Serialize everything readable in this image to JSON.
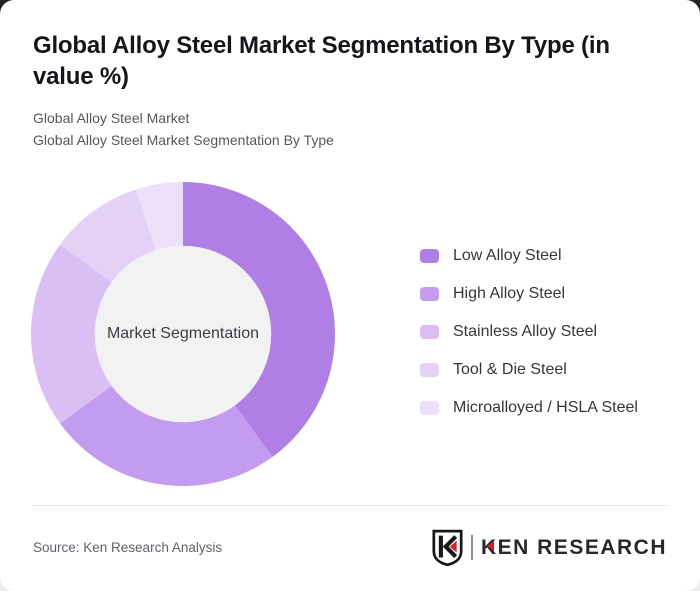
{
  "card": {
    "title": "Global Alloy Steel Market Segmentation By Type (in value %)",
    "subtitle_lines": [
      "Global Alloy Steel Market",
      "Global Alloy Steel Market Segmentation By Type"
    ]
  },
  "chart_data": {
    "type": "pie",
    "variant": "donut",
    "title": "Global Alloy Steel Market Segmentation By Type (in value %)",
    "unit": "value %",
    "center_label": "Market Segmentation",
    "categories": [
      "Low Alloy Steel",
      "High Alloy Steel",
      "Stainless Alloy Steel",
      "Tool & Die Steel",
      "Microalloyed / HSLA Steel"
    ],
    "values": [
      40,
      25,
      20,
      10,
      5
    ],
    "colors": [
      "#b07fe6",
      "#c49cef",
      "#d9bff4",
      "#e3d1f6",
      "#ede0fa"
    ],
    "start_angle_deg": 0,
    "clockwise": true,
    "inner_radius_ratio": 0.58,
    "inner_circle_color": "#f2f2f2",
    "legend_position": "right"
  },
  "footer": {
    "source": "Source: Ken Research Analysis",
    "brand_text": "KEN RESEARCH",
    "brand_accent_color": "#c9252b"
  }
}
